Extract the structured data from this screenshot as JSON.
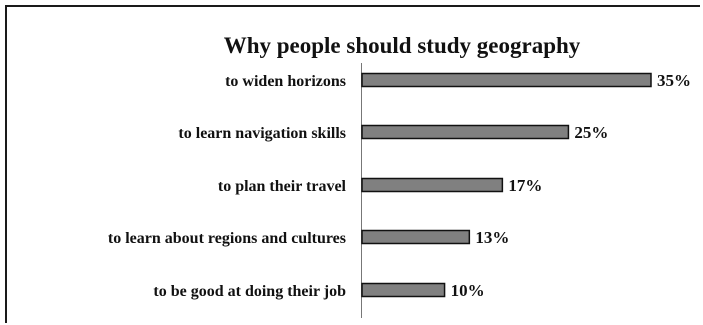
{
  "chart_data": {
    "type": "bar",
    "orientation": "horizontal",
    "title": "Why people should study geography",
    "categories": [
      "to widen horizons",
      "to learn navigation skills",
      "to plan their travel",
      "to learn about regions and cultures",
      "to be good at doing their job"
    ],
    "values": [
      35,
      25,
      17,
      13,
      10
    ],
    "value_labels": [
      "35%",
      "25%",
      "17%",
      "13%",
      "10%"
    ],
    "unit": "%",
    "xlim": [
      0,
      35
    ],
    "grid": false,
    "legend": "none",
    "bar_color": "#808080",
    "bar_edge_color": "#111111"
  }
}
